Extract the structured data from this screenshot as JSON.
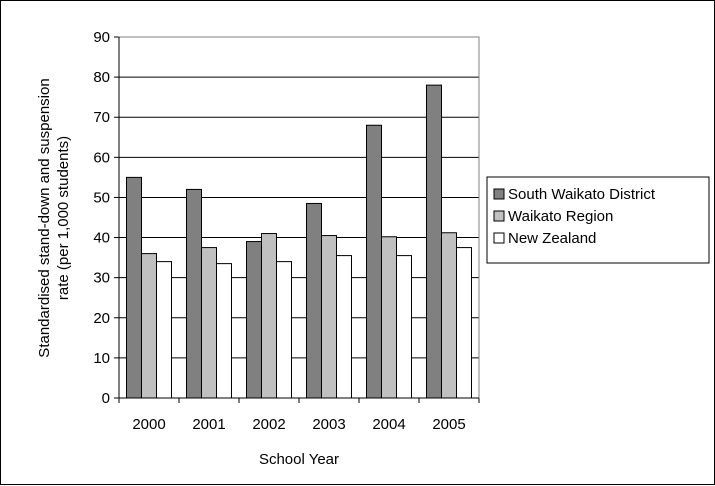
{
  "chart_data": {
    "type": "bar",
    "xlabel": "School Year",
    "ylabel_lines": [
      "Standardised stand-down and suspension",
      "rate (per 1,000 students)"
    ],
    "categories": [
      "2000",
      "2001",
      "2002",
      "2003",
      "2004",
      "2005"
    ],
    "ylim": [
      0,
      90
    ],
    "yticks": [
      0,
      10,
      20,
      30,
      40,
      50,
      60,
      70,
      80,
      90
    ],
    "ytick_labels": [
      "0",
      "10",
      "20",
      "30",
      "40",
      "50",
      "60",
      "70",
      "80",
      "90"
    ],
    "grid": true,
    "legend_position": "right",
    "series": [
      {
        "name": "South Waikato District",
        "color": "#808080",
        "values": [
          55,
          52,
          39,
          48.5,
          68,
          78
        ]
      },
      {
        "name": "Waikato Region",
        "color": "#c0c0c0",
        "values": [
          36,
          37.5,
          41,
          40.5,
          40.2,
          41.2
        ]
      },
      {
        "name": "New Zealand",
        "color": "#ffffff",
        "values": [
          34,
          33.5,
          34,
          35.5,
          35.5,
          37.5
        ]
      }
    ]
  }
}
